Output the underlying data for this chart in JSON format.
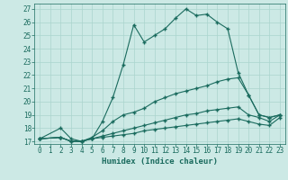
{
  "xlabel": "Humidex (Indice chaleur)",
  "xlim": [
    -0.5,
    23.5
  ],
  "ylim": [
    16.8,
    27.4
  ],
  "bg_color": "#cce9e5",
  "line_color": "#1a6b5e",
  "grid_color": "#aad4ce",
  "series": [
    {
      "x": [
        0,
        2,
        3,
        4,
        5,
        6,
        7,
        8,
        9,
        10,
        11,
        12,
        13,
        14,
        15,
        16,
        17,
        18,
        19,
        20,
        21,
        22,
        23
      ],
      "y": [
        17.2,
        18.0,
        17.2,
        17.0,
        17.2,
        18.5,
        20.3,
        22.8,
        25.8,
        24.5,
        25.0,
        25.5,
        26.3,
        27.0,
        26.5,
        26.6,
        26.0,
        25.5,
        22.2,
        20.5,
        19.0,
        18.8,
        19.0
      ]
    },
    {
      "x": [
        0,
        2,
        3,
        4,
        5,
        6,
        7,
        8,
        9,
        10,
        11,
        12,
        13,
        14,
        15,
        16,
        17,
        18,
        19,
        20,
        21,
        22,
        23
      ],
      "y": [
        17.2,
        17.3,
        17.0,
        17.0,
        17.3,
        17.8,
        18.5,
        19.0,
        19.2,
        19.5,
        20.0,
        20.3,
        20.6,
        20.8,
        21.0,
        21.2,
        21.5,
        21.7,
        21.8,
        20.5,
        19.0,
        18.8,
        19.0
      ]
    },
    {
      "x": [
        0,
        2,
        3,
        4,
        5,
        6,
        7,
        8,
        9,
        10,
        11,
        12,
        13,
        14,
        15,
        16,
        17,
        18,
        19,
        20,
        21,
        22,
        23
      ],
      "y": [
        17.2,
        17.3,
        17.0,
        17.0,
        17.2,
        17.4,
        17.6,
        17.8,
        18.0,
        18.2,
        18.4,
        18.6,
        18.8,
        19.0,
        19.1,
        19.3,
        19.4,
        19.5,
        19.6,
        19.0,
        18.8,
        18.5,
        19.0
      ]
    },
    {
      "x": [
        0,
        2,
        3,
        4,
        5,
        6,
        7,
        8,
        9,
        10,
        11,
        12,
        13,
        14,
        15,
        16,
        17,
        18,
        19,
        20,
        21,
        22,
        23
      ],
      "y": [
        17.2,
        17.3,
        17.0,
        17.0,
        17.2,
        17.3,
        17.4,
        17.5,
        17.6,
        17.8,
        17.9,
        18.0,
        18.1,
        18.2,
        18.3,
        18.4,
        18.5,
        18.6,
        18.7,
        18.5,
        18.3,
        18.2,
        18.8
      ]
    }
  ],
  "xticks": [
    0,
    1,
    2,
    3,
    4,
    5,
    6,
    7,
    8,
    9,
    10,
    11,
    12,
    13,
    14,
    15,
    16,
    17,
    18,
    19,
    20,
    21,
    22,
    23
  ],
  "yticks": [
    17,
    18,
    19,
    20,
    21,
    22,
    23,
    24,
    25,
    26,
    27
  ],
  "tick_fontsize": 5.5,
  "label_fontsize": 6.5
}
